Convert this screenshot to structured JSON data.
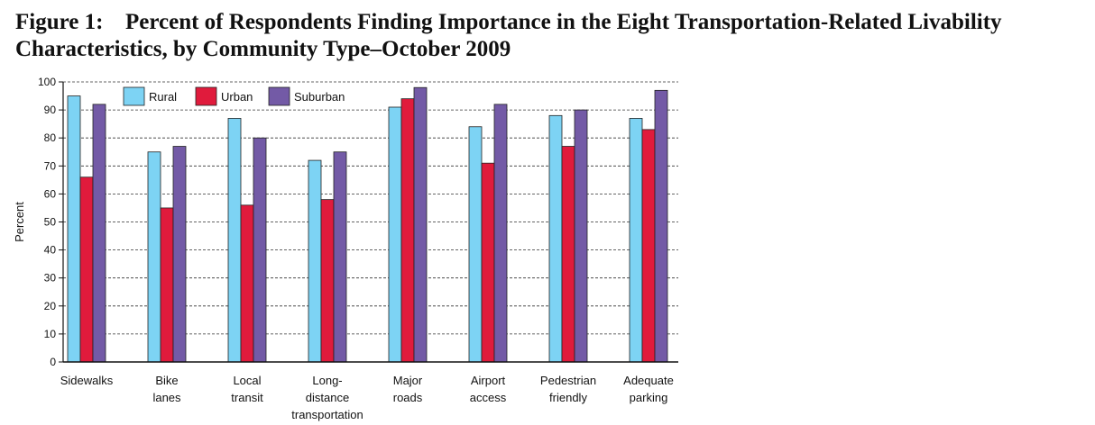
{
  "figure": {
    "number": "Figure 1:",
    "title_line1": "Percent of Respondents Finding Importance in the Eight Transportation-Related Livability",
    "title_line2": "Characteristics, by Community Type–October 2009"
  },
  "colors": {
    "rural": "#7dd3f4",
    "urban": "#e01b3c",
    "suburban": "#735aa6"
  },
  "chart_data": {
    "type": "bar",
    "ylabel": "Percent",
    "ylim": [
      0,
      100
    ],
    "yticks": [
      0,
      10,
      20,
      30,
      40,
      50,
      60,
      70,
      80,
      90,
      100
    ],
    "grid": "dashed horizontal",
    "legend_position": "top-left",
    "categories": [
      [
        "Sidewalks"
      ],
      [
        "Bike",
        "lanes"
      ],
      [
        "Local",
        "transit"
      ],
      [
        "Long-",
        "distance",
        "transportation"
      ],
      [
        "Major",
        "roads"
      ],
      [
        "Airport",
        "access"
      ],
      [
        "Pedestrian",
        "friendly"
      ],
      [
        "Adequate",
        "parking"
      ]
    ],
    "series": [
      {
        "name": "Rural",
        "color": "#7dd3f4",
        "values": [
          95,
          75,
          87,
          72,
          91,
          84,
          88,
          87
        ]
      },
      {
        "name": "Urban",
        "color": "#e01b3c",
        "values": [
          66,
          55,
          56,
          58,
          94,
          71,
          77,
          83
        ]
      },
      {
        "name": "Suburban",
        "color": "#735aa6",
        "values": [
          92,
          77,
          80,
          75,
          98,
          92,
          90,
          97
        ]
      }
    ]
  }
}
